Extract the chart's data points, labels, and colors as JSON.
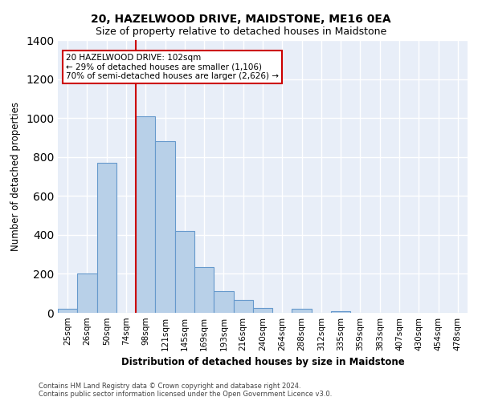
{
  "title": "20, HAZELWOOD DRIVE, MAIDSTONE, ME16 0EA",
  "subtitle": "Size of property relative to detached houses in Maidstone",
  "xlabel": "Distribution of detached houses by size in Maidstone",
  "ylabel": "Number of detached properties",
  "categories": [
    "25sqm",
    "26sqm",
    "50sqm",
    "74sqm",
    "98sqm",
    "121sqm",
    "145sqm",
    "169sqm",
    "193sqm",
    "216sqm",
    "240sqm",
    "264sqm",
    "288sqm",
    "312sqm",
    "335sqm",
    "359sqm",
    "383sqm",
    "407sqm",
    "430sqm",
    "454sqm",
    "478sqm"
  ],
  "values": [
    20,
    200,
    770,
    0,
    1010,
    880,
    420,
    235,
    110,
    65,
    25,
    0,
    20,
    0,
    10,
    0,
    0,
    0,
    0,
    0,
    0
  ],
  "bar_color": "#b8d0e8",
  "bar_edge_color": "#6699cc",
  "fig_bg_color": "#ffffff",
  "axes_bg_color": "#e8eef8",
  "grid_color": "#ffffff",
  "annotation_box_fill": "#ffffff",
  "annotation_box_edge": "#cc0000",
  "vline_color": "#cc0000",
  "vline_x_index": 4,
  "annotation_text_line1": "20 HAZELWOOD DRIVE: 102sqm",
  "annotation_text_line2": "← 29% of detached houses are smaller (1,106)",
  "annotation_text_line3": "70% of semi-detached houses are larger (2,626) →",
  "footnote1": "Contains HM Land Registry data © Crown copyright and database right 2024.",
  "footnote2": "Contains public sector information licensed under the Open Government Licence v3.0.",
  "ylim": [
    0,
    1400
  ],
  "title_fontsize": 10,
  "subtitle_fontsize": 9
}
